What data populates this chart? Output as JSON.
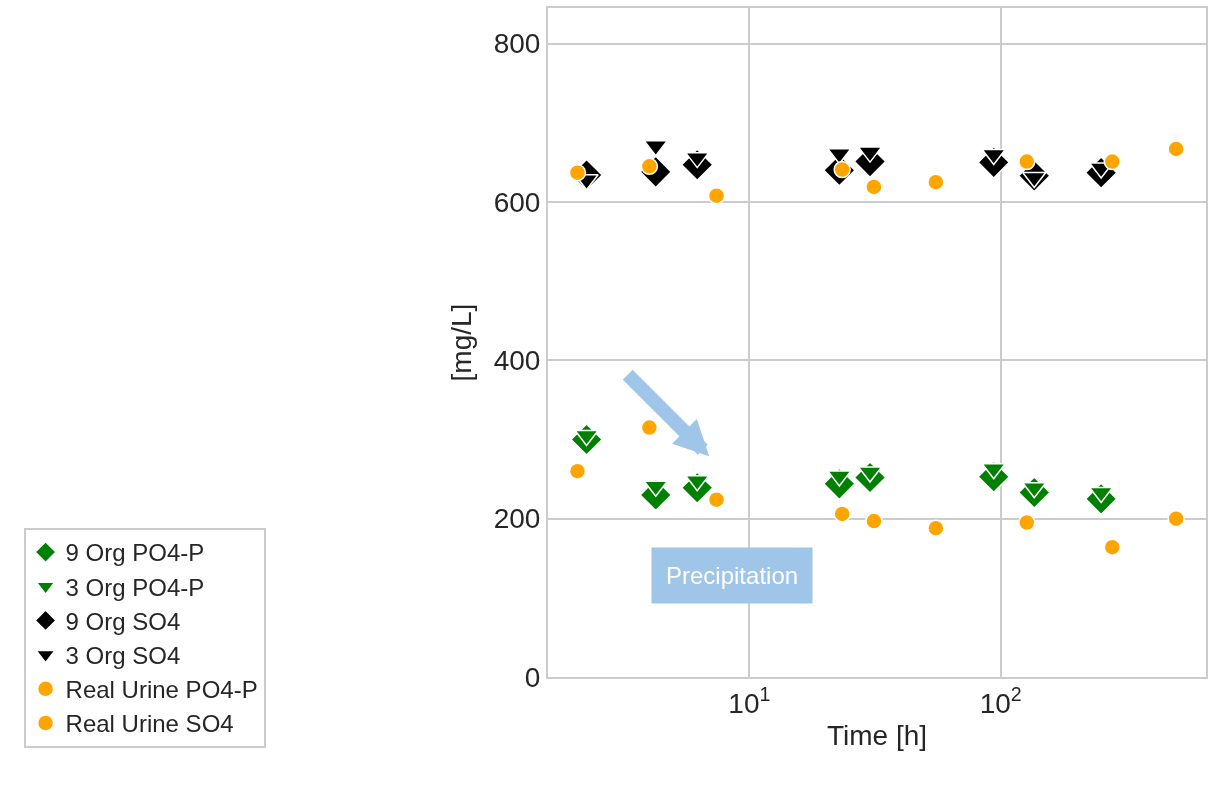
{
  "chart_data": {
    "type": "scatter",
    "xlabel": "Time [h]",
    "ylabel": "[mg/L]",
    "log": "x",
    "grid": true,
    "legend": "bottom left",
    "xlim": [
      1.58,
      656
    ],
    "xticks": [
      {
        "value": 10,
        "label": "10$^{1}$"
      },
      {
        "value": 100,
        "label": "10$^{2}$"
      }
    ],
    "ylim": [
      0,
      845
    ],
    "yticks": [
      0,
      200,
      400,
      600,
      800
    ],
    "annotations": [
      "Precipitation"
    ],
    "series": [
      {
        "name": "9 Org PO4-P",
        "color": "#008000",
        "marker": "diamond",
        "x": [
          2.25,
          4.24,
          6.2,
          22.8,
          30.2,
          93.8,
          136,
          251
        ],
        "values": [
          300,
          230,
          239,
          244,
          252,
          253,
          233,
          225
        ]
      },
      {
        "name": "3 Org PO4-P",
        "color": "#008000",
        "marker": "triangle",
        "x": [
          2.25,
          4.24,
          6.2,
          22.8,
          30.2,
          93.8,
          136,
          251
        ],
        "values": [
          305,
          241,
          248,
          254,
          259,
          263,
          239,
          233
        ]
      },
      {
        "name": "9 Org SO4",
        "color": "#000000",
        "marker": "diamond",
        "x": [
          2.25,
          4.24,
          6.2,
          22.8,
          30.2,
          93.8,
          136,
          251
        ],
        "values": [
          634,
          638,
          647,
          640,
          651,
          650,
          633,
          637
        ]
      },
      {
        "name": "3 Org SO4",
        "color": "#000000",
        "marker": "triangle",
        "x": [
          2.25,
          4.24,
          6.2,
          22.8,
          30.2,
          93.8,
          136,
          251
        ],
        "values": [
          628,
          671,
          656,
          661,
          663,
          660,
          631,
          643
        ]
      },
      {
        "name": "Real Urine PO4-P",
        "color": "#ffa500",
        "marker": "circle",
        "x": [
          2.07,
          4.0,
          7.4,
          23.4,
          31.3,
          55.2,
          127,
          278,
          499
        ],
        "values": [
          260,
          315,
          224,
          206,
          197,
          188,
          195,
          164,
          200
        ]
      },
      {
        "name": "Real Urine SO4",
        "color": "#ffa500",
        "marker": "circle",
        "x": [
          2.07,
          4.0,
          7.4,
          23.4,
          31.3,
          55.2,
          127,
          278,
          499
        ],
        "values": [
          637,
          645,
          608,
          641,
          619,
          625,
          651,
          651,
          667
        ]
      }
    ]
  }
}
